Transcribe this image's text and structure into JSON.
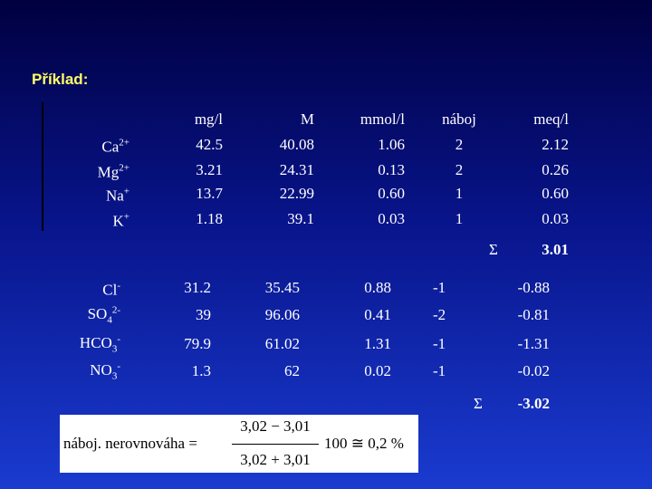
{
  "title": "Příklad:",
  "cations": {
    "headers": [
      "mg/l",
      "M",
      "mmol/l",
      "náboj",
      "meq/l"
    ],
    "rows": [
      {
        "ion": {
          "text": "Ca",
          "sup": "2+"
        },
        "cells": [
          "42.5",
          "40.08",
          "1.06",
          "2",
          "2.12"
        ]
      },
      {
        "ion": {
          "text": "Mg",
          "sup": "2+"
        },
        "cells": [
          "3.21",
          "24.31",
          "0.13",
          "2",
          "0.26"
        ]
      },
      {
        "ion": {
          "text": "Na",
          "sup": "+"
        },
        "cells": [
          "13.7",
          "22.99",
          "0.60",
          "1",
          "0.60"
        ]
      },
      {
        "ion": {
          "text": "K",
          "sup": "+"
        },
        "cells": [
          "1.18",
          "39.1",
          "0.03",
          "1",
          "0.03"
        ]
      }
    ],
    "sum": {
      "symbol": "Σ",
      "value": "3.01"
    }
  },
  "anions": {
    "rows": [
      {
        "ion": {
          "text": "Cl",
          "sup": "-"
        },
        "cells": [
          "31.2",
          "35.45",
          "0.88",
          "-1",
          "-0.88"
        ]
      },
      {
        "ion": {
          "text": "SO",
          "sub": "4",
          "sup": "2-"
        },
        "cells": [
          "39",
          "96.06",
          "0.41",
          "-2",
          "-0.81"
        ]
      },
      {
        "ion": {
          "text": "HCO",
          "sub": "3",
          "sup": "-"
        },
        "cells": [
          "79.9",
          "61.02",
          "1.31",
          "-1",
          "-1.31"
        ]
      },
      {
        "ion": {
          "text": "NO",
          "sub": "3",
          "sup": "-"
        },
        "cells": [
          "1.3",
          "62",
          "0.02",
          "-1",
          "-0.02"
        ]
      }
    ],
    "sum": {
      "symbol": "Σ",
      "value": "-3.02"
    }
  },
  "formula": {
    "lhs": "náboj. nerovnováha =",
    "numerator": "3,02 − 3,01",
    "denominator": "3,02 + 3,01",
    "rhs": "100 ≅ 0,2 %"
  }
}
